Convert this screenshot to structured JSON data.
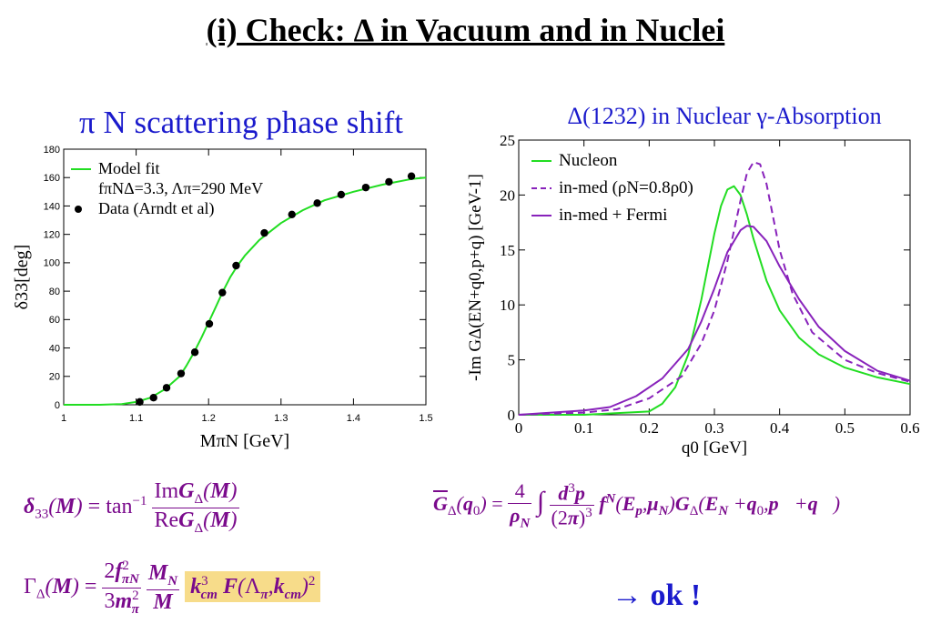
{
  "title": "(i) Check: Δ in Vacuum and in Nuclei",
  "ok_text": "→ ok !",
  "chart_data": [
    {
      "type": "scatter",
      "title": "π N scattering phase shift",
      "xlabel": "MπN [GeV]",
      "ylabel": "δ33[deg]",
      "xlim": [
        1.0,
        1.5
      ],
      "ylim": [
        0,
        180
      ],
      "xticks": [
        "1",
        "1.1",
        "1.2",
        "1.3",
        "1.4",
        "1.5"
      ],
      "yticks": [
        "0",
        "20",
        "40",
        "60",
        "80",
        "100",
        "120",
        "140",
        "160",
        "180"
      ],
      "legend_position": "top-left",
      "series": [
        {
          "name": "Model fit",
          "name_extra": "fπNΔ=3.3, Λπ=290 MeV",
          "style": "line",
          "color": "#22dd22",
          "x": [
            1.0,
            1.05,
            1.08,
            1.1,
            1.12,
            1.14,
            1.16,
            1.17,
            1.18,
            1.19,
            1.2,
            1.21,
            1.22,
            1.23,
            1.24,
            1.25,
            1.27,
            1.3,
            1.33,
            1.36,
            1.4,
            1.44,
            1.48,
            1.5
          ],
          "y": [
            0,
            0,
            0.5,
            2,
            5,
            11,
            20,
            28,
            37,
            47,
            58,
            69,
            80,
            90,
            98,
            105,
            116,
            128,
            137,
            144,
            150,
            155,
            159,
            160
          ]
        },
        {
          "name": "Data (Arndt et al)",
          "style": "points",
          "color": "#000000",
          "x": [
            1.105,
            1.124,
            1.142,
            1.162,
            1.181,
            1.201,
            1.219,
            1.238,
            1.277,
            1.315,
            1.35,
            1.383,
            1.417,
            1.449,
            1.48
          ],
          "y": [
            2,
            5,
            12,
            22,
            37,
            57,
            79,
            98,
            121,
            134,
            142,
            148,
            153,
            157,
            161
          ]
        }
      ]
    },
    {
      "type": "line",
      "title": "Δ(1232) in Nuclear γ-Absorption",
      "xlabel": "q0 [GeV]",
      "ylabel": "-Im GΔ(EN+q0,p+q) [GeV-1]",
      "xlim": [
        0,
        0.6
      ],
      "ylim": [
        0,
        25
      ],
      "xticks": [
        "0",
        "0.1",
        "0.2",
        "0.3",
        "0.4",
        "0.5",
        "0.6"
      ],
      "yticks": [
        "0",
        "5",
        "10",
        "15",
        "20",
        "25"
      ],
      "legend_position": "top-left",
      "series": [
        {
          "name": "Nucleon",
          "color": "#22dd22",
          "dash": "solid",
          "x": [
            0,
            0.1,
            0.2,
            0.22,
            0.24,
            0.26,
            0.28,
            0.3,
            0.31,
            0.32,
            0.33,
            0.34,
            0.35,
            0.36,
            0.38,
            0.4,
            0.43,
            0.46,
            0.5,
            0.55,
            0.6
          ],
          "y": [
            0,
            0,
            0.3,
            1,
            2.5,
            5.5,
            10.5,
            16.5,
            19,
            20.5,
            20.8,
            20,
            18.2,
            16,
            12.2,
            9.5,
            7,
            5.5,
            4.3,
            3.4,
            2.8
          ]
        },
        {
          "name": "in-med (ρN=0.8ρ0)",
          "color": "#8822bb",
          "dash": "dashed",
          "x": [
            0,
            0.05,
            0.1,
            0.15,
            0.2,
            0.25,
            0.28,
            0.3,
            0.32,
            0.34,
            0.35,
            0.36,
            0.37,
            0.38,
            0.39,
            0.4,
            0.42,
            0.45,
            0.5,
            0.55,
            0.6
          ],
          "y": [
            0,
            0.1,
            0.2,
            0.5,
            1.5,
            3.5,
            6.5,
            9.5,
            14,
            19.5,
            22,
            23,
            22.8,
            21,
            18,
            15,
            11,
            7.5,
            5,
            3.8,
            3
          ]
        },
        {
          "name": "in-med + Fermi",
          "color": "#8822bb",
          "dash": "solid",
          "x": [
            0,
            0.05,
            0.1,
            0.14,
            0.18,
            0.22,
            0.26,
            0.28,
            0.3,
            0.32,
            0.34,
            0.35,
            0.36,
            0.38,
            0.4,
            0.43,
            0.46,
            0.5,
            0.55,
            0.6
          ],
          "y": [
            0,
            0.2,
            0.4,
            0.7,
            1.7,
            3.3,
            6,
            8.5,
            11.5,
            14.8,
            16.8,
            17.2,
            17.1,
            15.8,
            13.5,
            10.5,
            8,
            5.8,
            4,
            3.1
          ]
        }
      ]
    }
  ]
}
